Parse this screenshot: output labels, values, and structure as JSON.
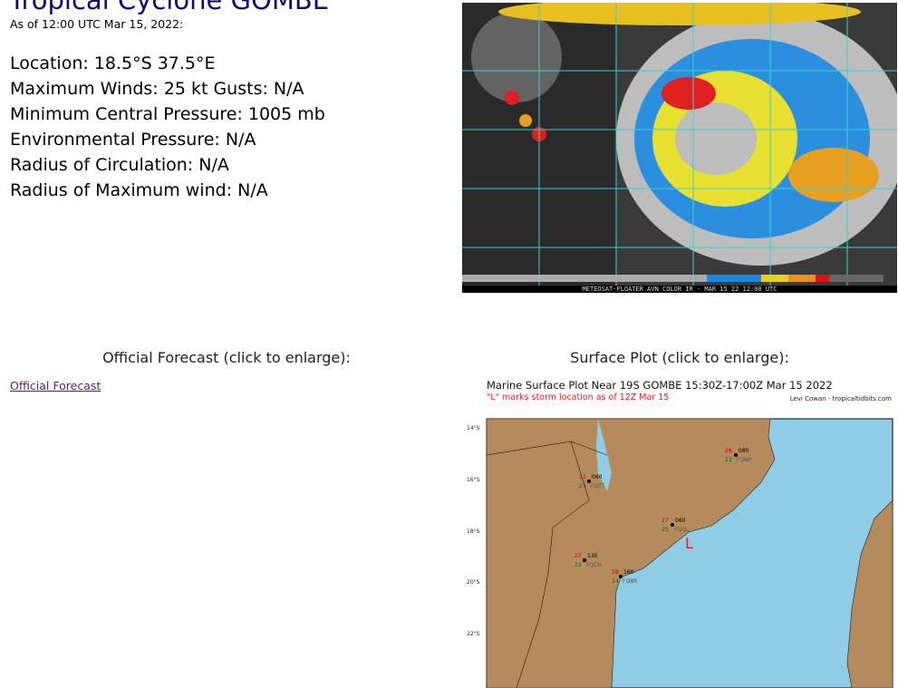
{
  "title": "Tropical Cyclone GOMBE",
  "as_of": "As of 12:00 UTC Mar 15, 2022:",
  "stats": [
    "Location: 18.5°S 37.5°E",
    "Maximum Winds: 25 kt  Gusts: N/A",
    "Minimum Central Pressure: 1005 mb",
    "Environmental Pressure: N/A",
    "Radius of Circulation: N/A",
    "Radius of Maximum wind: N/A"
  ],
  "satellite": {
    "caption": "METEOSAT-FLOATER AVN COLOR IR - MAR 15 22 12:00 UTC"
  },
  "forecast": {
    "heading": "Official Forecast (click to enlarge):",
    "link": "Official Forecast"
  },
  "surface": {
    "heading": "Surface Plot (click to enlarge):",
    "title": "Marine Surface Plot Near 19S GOMBE 15:30Z-17:00Z Mar 15 2022",
    "subtitle": "\"L\" marks storm location as of 12Z Mar 15",
    "credit": "Levi Cowan - tropicaltidbits.com",
    "lat_labels": [
      "14°S",
      "16°S",
      "18°S",
      "20°S",
      "22°S"
    ],
    "storm_marker": "L",
    "stations": [
      {
        "id": "FQNP",
        "temp": "26",
        "pres": "080",
        "dew": "23"
      },
      {
        "id": "FQTT",
        "temp": "31",
        "pres": "060",
        "dew": "23"
      },
      {
        "id": "FQQL",
        "temp": "27",
        "pres": "060",
        "dew": "25"
      },
      {
        "id": "FQCH",
        "temp": "27",
        "pres": "130",
        "dew": "23"
      },
      {
        "id": "FQBR",
        "temp": "28",
        "pres": "160",
        "dew": "24"
      }
    ],
    "colors": {
      "land": "#b58a5c",
      "ocean": "#8fcde6",
      "storm": "#e0202a"
    }
  }
}
